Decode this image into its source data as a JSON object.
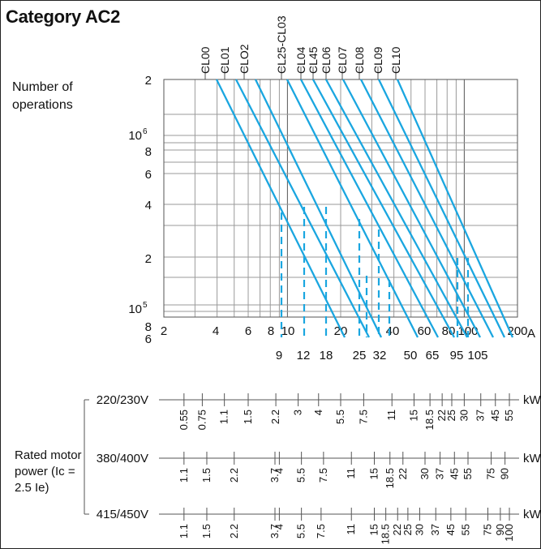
{
  "title": "Category AC2",
  "y_axis_label": "Number of operations",
  "unit_label": "A",
  "rated_label": "Rated motor power (Ic = 2.5 Ie)",
  "colors": {
    "curve": "#1aa6e0",
    "grid": "#9a9a9a",
    "axis": "#555555",
    "text": "#111111"
  },
  "chart_data": {
    "type": "line",
    "title": "Category AC2",
    "xscale": "log",
    "yscale": "log",
    "xlim": [
      2,
      200
    ],
    "ylim": [
      600000,
      2000000
    ],
    "xlabel": "A",
    "ylabel": "Number of operations",
    "x_tick_labels": [
      "2",
      "4",
      "6",
      "8",
      "10",
      "20",
      "40",
      "60",
      "80",
      "100",
      "200"
    ],
    "y_tick_labels": [
      "2",
      "10^6",
      "8",
      "6",
      "4",
      "2",
      "10^5",
      "8",
      "6"
    ],
    "rated_current_labels": [
      "9",
      "12",
      "18",
      "25",
      "32",
      "50",
      "65",
      "95",
      "105"
    ],
    "series": [
      {
        "name": "CL00",
        "points": [
          [
            4.2,
            2000000
          ],
          [
            13.5,
            700000
          ]
        ]
      },
      {
        "name": "CL01",
        "points": [
          [
            5.2,
            2000000
          ],
          [
            20,
            700000
          ]
        ]
      },
      {
        "name": "CLO2",
        "points": [
          [
            6.3,
            2000000
          ],
          [
            28,
            700000
          ]
        ]
      },
      {
        "name": "CL25-CL03",
        "points": [
          [
            9.8,
            2000000
          ],
          [
            37,
            700000
          ]
        ]
      },
      {
        "name": "CL04",
        "points": [
          [
            12,
            2000000
          ],
          [
            46,
            700000
          ]
        ]
      },
      {
        "name": "CL45",
        "points": [
          [
            14,
            2000000
          ],
          [
            55,
            700000
          ]
        ]
      },
      {
        "name": "CL06",
        "points": [
          [
            17,
            2000000
          ],
          [
            65,
            700000
          ]
        ]
      },
      {
        "name": "CL07",
        "points": [
          [
            20,
            2000000
          ],
          [
            80,
            700000
          ]
        ]
      },
      {
        "name": "CL08",
        "points": [
          [
            25,
            2000000
          ],
          [
            100,
            700000
          ]
        ]
      },
      {
        "name": "CL09",
        "points": [
          [
            31,
            2000000
          ],
          [
            120,
            700000
          ]
        ]
      },
      {
        "name": "CL10",
        "points": [
          [
            40,
            2000000
          ],
          [
            150,
            700000
          ]
        ]
      }
    ],
    "rated_markers": [
      {
        "current": 9,
        "operations": 300000
      },
      {
        "current": 12,
        "operations": 300000
      },
      {
        "current": 18,
        "operations": 300000
      },
      {
        "current": 25,
        "operations": 300000
      },
      {
        "current": 32,
        "operations": 300000
      },
      {
        "current": 50,
        "operations": 300000
      },
      {
        "current": 65,
        "operations": 300000
      },
      {
        "current": 95,
        "operations": 300000
      },
      {
        "current": 105,
        "operations": 300000
      }
    ]
  },
  "power_scales": [
    {
      "voltage": "220/230V",
      "unit": "kW",
      "ticks": [
        {
          "label": "0.55",
          "current": 2.6
        },
        {
          "label": "0.75",
          "current": 3.3
        },
        {
          "label": "1.1",
          "current": 4.4
        },
        {
          "label": "1.5",
          "current": 6
        },
        {
          "label": "2.2",
          "current": 8.6
        },
        {
          "label": "3",
          "current": 11.5
        },
        {
          "label": "4",
          "current": 15
        },
        {
          "label": "5.5",
          "current": 20
        },
        {
          "label": "7.5",
          "current": 27
        },
        {
          "label": "11",
          "current": 39
        },
        {
          "label": "15",
          "current": 52
        },
        {
          "label": "18.5",
          "current": 64
        },
        {
          "label": "22",
          "current": 75
        },
        {
          "label": "25",
          "current": 85
        },
        {
          "label": "30",
          "current": 100
        },
        {
          "label": "37",
          "current": 124
        },
        {
          "label": "45",
          "current": 150
        },
        {
          "label": "55",
          "current": 180
        }
      ]
    },
    {
      "voltage": "380/400V",
      "unit": "kW",
      "ticks": [
        {
          "label": "1.1",
          "current": 2.6
        },
        {
          "label": "1.5",
          "current": 3.5
        },
        {
          "label": "2.2",
          "current": 5
        },
        {
          "label": "3.7",
          "current": 8.5
        },
        {
          "label": "4",
          "current": 9
        },
        {
          "label": "5.5",
          "current": 12
        },
        {
          "label": "7.5",
          "current": 16
        },
        {
          "label": "11",
          "current": 23
        },
        {
          "label": "15",
          "current": 31
        },
        {
          "label": "18.5",
          "current": 38
        },
        {
          "label": "22",
          "current": 45
        },
        {
          "label": "30",
          "current": 60
        },
        {
          "label": "37",
          "current": 73
        },
        {
          "label": "45",
          "current": 88
        },
        {
          "label": "55",
          "current": 105
        },
        {
          "label": "75",
          "current": 142
        },
        {
          "label": "90",
          "current": 170
        }
      ]
    },
    {
      "voltage": "415/450V",
      "unit": "kW",
      "ticks": [
        {
          "label": "1.1",
          "current": 2.6
        },
        {
          "label": "1.5",
          "current": 3.5
        },
        {
          "label": "2.2",
          "current": 5
        },
        {
          "label": "3.7",
          "current": 8.5
        },
        {
          "label": "4",
          "current": 9
        },
        {
          "label": "5.5",
          "current": 12
        },
        {
          "label": "7.5",
          "current": 15.5
        },
        {
          "label": "11",
          "current": 23
        },
        {
          "label": "15",
          "current": 31
        },
        {
          "label": "18.5",
          "current": 36
        },
        {
          "label": "22",
          "current": 42
        },
        {
          "label": "25",
          "current": 48
        },
        {
          "label": "30",
          "current": 56
        },
        {
          "label": "37",
          "current": 69
        },
        {
          "label": "45",
          "current": 84
        },
        {
          "label": "55",
          "current": 102
        },
        {
          "label": "75",
          "current": 136
        },
        {
          "label": "90",
          "current": 160
        },
        {
          "label": "100",
          "current": 180
        }
      ]
    }
  ]
}
